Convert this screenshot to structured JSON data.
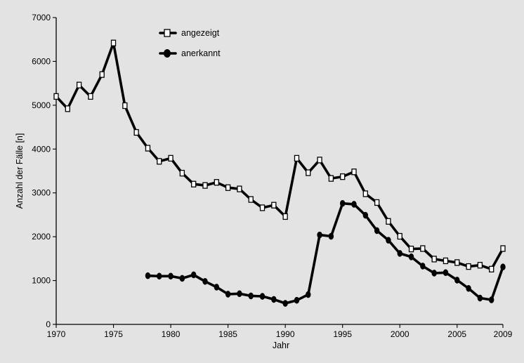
{
  "chart_data": {
    "type": "line",
    "xlabel": "Jahr",
    "ylabel": "Anzahl der Fälle [n]",
    "xlim": [
      1970,
      2009
    ],
    "ylim": [
      0,
      7000
    ],
    "x_ticks": [
      1970,
      1975,
      1980,
      1985,
      1990,
      1995,
      2000,
      2005,
      2009
    ],
    "y_ticks": [
      0,
      1000,
      2000,
      3000,
      4000,
      5000,
      6000,
      7000
    ],
    "grid": false,
    "legend_position": "top-center",
    "series": [
      {
        "name": "angezeigt",
        "marker": "square-open",
        "color": "#000000",
        "x": [
          1970,
          1971,
          1972,
          1973,
          1974,
          1975,
          1976,
          1977,
          1978,
          1979,
          1980,
          1981,
          1982,
          1983,
          1984,
          1985,
          1986,
          1987,
          1988,
          1989,
          1990,
          1991,
          1992,
          1993,
          1994,
          1995,
          1996,
          1997,
          1998,
          1999,
          2000,
          2001,
          2002,
          2003,
          2004,
          2005,
          2006,
          2007,
          2008,
          2009
        ],
        "values": [
          5200,
          4920,
          5460,
          5200,
          5700,
          6420,
          4990,
          4380,
          4020,
          3720,
          3790,
          3450,
          3200,
          3170,
          3240,
          3120,
          3090,
          2850,
          2660,
          2720,
          2460,
          3790,
          3460,
          3750,
          3330,
          3370,
          3480,
          2980,
          2780,
          2350,
          2010,
          1720,
          1730,
          1490,
          1450,
          1410,
          1320,
          1350,
          1260,
          1730
        ]
      },
      {
        "name": "anerkannt",
        "marker": "circle-filled",
        "color": "#000000",
        "x": [
          1978,
          1979,
          1980,
          1981,
          1982,
          1983,
          1984,
          1985,
          1986,
          1987,
          1988,
          1989,
          1990,
          1991,
          1992,
          1993,
          1994,
          1995,
          1996,
          1997,
          1998,
          1999,
          2000,
          2001,
          2002,
          2003,
          2004,
          2005,
          2006,
          2007,
          2008,
          2009
        ],
        "values": [
          1110,
          1100,
          1100,
          1050,
          1130,
          980,
          850,
          690,
          700,
          650,
          640,
          570,
          480,
          550,
          680,
          2040,
          2010,
          2760,
          2740,
          2490,
          2140,
          1920,
          1620,
          1540,
          1330,
          1170,
          1180,
          1010,
          820,
          600,
          560,
          1310
        ]
      }
    ]
  }
}
